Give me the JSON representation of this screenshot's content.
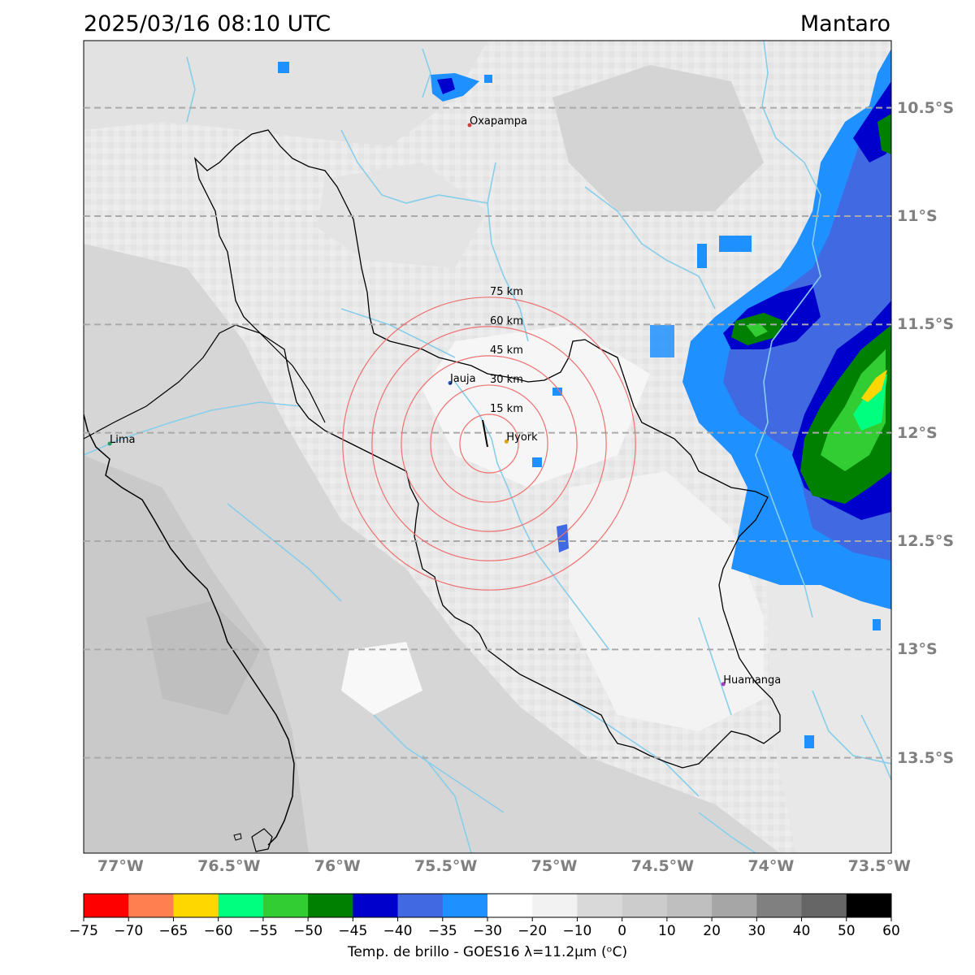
{
  "header": {
    "timestamp": "2025/03/16 08:10 UTC",
    "region": "Mantaro"
  },
  "map": {
    "lat_labels": [
      "10.5°S",
      "11°S",
      "11.5°S",
      "12°S",
      "12.5°S",
      "13°S",
      "13.5°S"
    ],
    "lat_values": [
      -10.5,
      -11.0,
      -11.5,
      -12.0,
      -12.5,
      -13.0,
      -13.5
    ],
    "lon_labels": [
      "77°W",
      "76.5°W",
      "76°W",
      "75.5°W",
      "75°W",
      "74.5°W",
      "74°W",
      "73.5°W"
    ],
    "lon_values": [
      -77.0,
      -76.5,
      -76.0,
      -75.5,
      -75.0,
      -74.5,
      -74.0,
      -73.5
    ],
    "gridlines": "dashed latitude lines",
    "cities": [
      {
        "name": "Oxapampa",
        "lon": -75.39,
        "lat": -10.58,
        "color": "#d04040"
      },
      {
        "name": "Jauja",
        "lon": -75.48,
        "lat": -11.77,
        "color": "#3060c0"
      },
      {
        "name": "Hyork",
        "lon": -75.22,
        "lat": -12.04,
        "color": "#e0a000"
      },
      {
        "name": "Lima",
        "lon": -77.05,
        "lat": -12.05,
        "color": "#20a060"
      },
      {
        "name": "Huamanga",
        "lon": -74.22,
        "lat": -13.16,
        "color": "#a040c0"
      }
    ],
    "range_rings": {
      "center_lon": -75.3,
      "center_lat": -12.05,
      "labels": [
        "15 km",
        "30 km",
        "45 km",
        "60 km",
        "75 km"
      ],
      "radii_km": [
        15,
        30,
        45,
        60,
        75
      ],
      "color": "#f07070"
    },
    "cloud_colors": {
      "background_light": "#f2f2f2",
      "background_mid": "#d9d9d9",
      "background_dark": "#c8c8c8",
      "cold_blue_dark": "#0000cd",
      "cold_blue_mid": "#4169e1",
      "cold_blue_light": "#1e90ff",
      "cold_green_dark": "#008000",
      "cold_green_mid": "#32cd32",
      "cold_green_light": "#00ff7f",
      "cold_yellow": "#ffd700",
      "river": "#87ceeb"
    }
  },
  "colorbar": {
    "ticks": [
      "−75",
      "−70",
      "−65",
      "−60",
      "−55",
      "−50",
      "−45",
      "−40",
      "−35",
      "−30",
      "−20",
      "−10",
      "0",
      "10",
      "20",
      "30",
      "40",
      "50",
      "60"
    ],
    "colors": [
      "#ff0000",
      "#ff7f50",
      "#ffd700",
      "#00ff7f",
      "#32cd32",
      "#008000",
      "#0000cd",
      "#4169e1",
      "#1e90ff",
      "#ffffff",
      "#f2f2f2",
      "#d9d9d9",
      "#cccccc",
      "#bfbfbf",
      "#a6a6a6",
      "#808080",
      "#666666",
      "#000000"
    ],
    "label": "Temp. de brillo - GOES16 λ=11.2μm (ᵒC)"
  }
}
